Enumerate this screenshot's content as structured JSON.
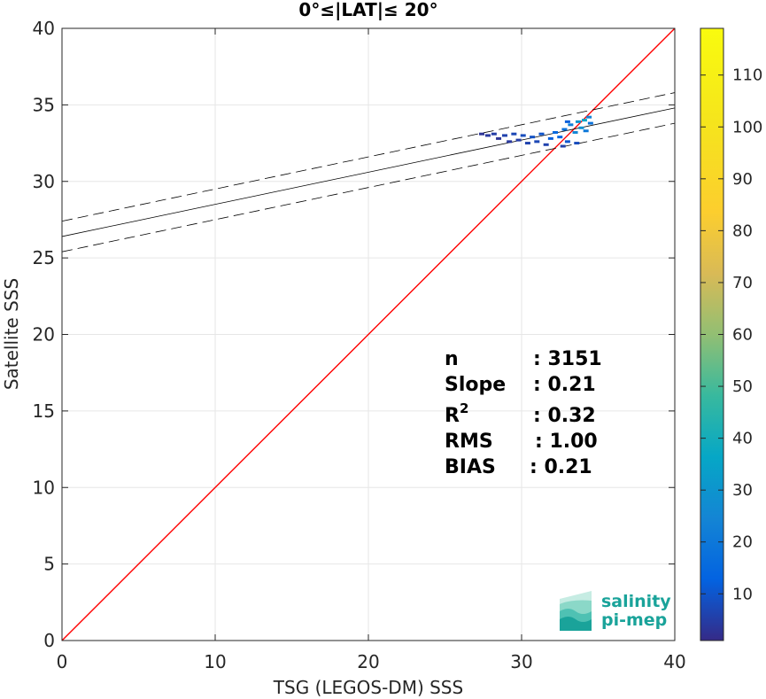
{
  "chart_data": {
    "type": "scatter",
    "title": "0°≤|LAT|≤ 20°",
    "xlabel": "TSG (LEGOS-DM) SSS",
    "ylabel": "Satellite SSS",
    "xlim": [
      0,
      40
    ],
    "ylim": [
      0,
      40
    ],
    "xticks": [
      0,
      10,
      20,
      30,
      40
    ],
    "yticks": [
      0,
      5,
      10,
      15,
      20,
      25,
      30,
      35,
      40
    ],
    "grid": true,
    "identity_line": {
      "color": "#ff0000",
      "from": [
        0,
        0
      ],
      "to": [
        40,
        40
      ]
    },
    "regression": {
      "intercept": 26.4,
      "slope": 0.21,
      "band_offset": 1.0,
      "color": "#000000"
    },
    "density_points": [
      {
        "x": 27.4,
        "y": 33.1,
        "count": 3
      },
      {
        "x": 27.8,
        "y": 33.0,
        "count": 4
      },
      {
        "x": 28.2,
        "y": 33.1,
        "count": 5
      },
      {
        "x": 28.5,
        "y": 32.8,
        "count": 3
      },
      {
        "x": 28.9,
        "y": 33.0,
        "count": 6
      },
      {
        "x": 29.2,
        "y": 32.6,
        "count": 4
      },
      {
        "x": 29.5,
        "y": 33.1,
        "count": 7
      },
      {
        "x": 29.8,
        "y": 32.7,
        "count": 5
      },
      {
        "x": 30.1,
        "y": 33.0,
        "count": 8
      },
      {
        "x": 30.4,
        "y": 32.5,
        "count": 6
      },
      {
        "x": 30.7,
        "y": 32.9,
        "count": 9
      },
      {
        "x": 31.0,
        "y": 32.6,
        "count": 7
      },
      {
        "x": 31.3,
        "y": 33.1,
        "count": 10
      },
      {
        "x": 31.6,
        "y": 32.4,
        "count": 6
      },
      {
        "x": 31.9,
        "y": 32.8,
        "count": 12
      },
      {
        "x": 32.2,
        "y": 33.2,
        "count": 15
      },
      {
        "x": 32.5,
        "y": 32.9,
        "count": 14
      },
      {
        "x": 32.8,
        "y": 33.4,
        "count": 18
      },
      {
        "x": 33.0,
        "y": 32.6,
        "count": 10
      },
      {
        "x": 33.2,
        "y": 33.7,
        "count": 22
      },
      {
        "x": 33.5,
        "y": 33.2,
        "count": 25
      },
      {
        "x": 33.7,
        "y": 33.9,
        "count": 30
      },
      {
        "x": 33.9,
        "y": 33.5,
        "count": 28
      },
      {
        "x": 34.1,
        "y": 34.0,
        "count": 35
      },
      {
        "x": 34.2,
        "y": 33.3,
        "count": 20
      },
      {
        "x": 34.4,
        "y": 34.2,
        "count": 24
      },
      {
        "x": 34.5,
        "y": 33.8,
        "count": 18
      },
      {
        "x": 33.6,
        "y": 32.5,
        "count": 8
      },
      {
        "x": 33.0,
        "y": 33.9,
        "count": 12
      },
      {
        "x": 32.7,
        "y": 32.3,
        "count": 6
      }
    ],
    "colorbar": {
      "min": 1,
      "max": 119,
      "ticks": [
        10,
        20,
        30,
        40,
        50,
        60,
        70,
        80,
        90,
        100,
        110
      ],
      "colormap": "parula"
    },
    "stats": [
      {
        "label": "n",
        "value": ": 3151"
      },
      {
        "label": "Slope",
        "value": ": 0.21"
      },
      {
        "label": "R",
        "sup": "2",
        "value": ": 0.32"
      },
      {
        "label": "RMS",
        "value": ": 1.00"
      },
      {
        "label": "BIAS",
        "value": ": 0.21"
      }
    ]
  },
  "logo": {
    "line1": "salinity",
    "line2": "pi-mep",
    "colors": [
      "#1aa39a",
      "#4fc1b3",
      "#8bd8c8",
      "#c6ece3"
    ]
  }
}
